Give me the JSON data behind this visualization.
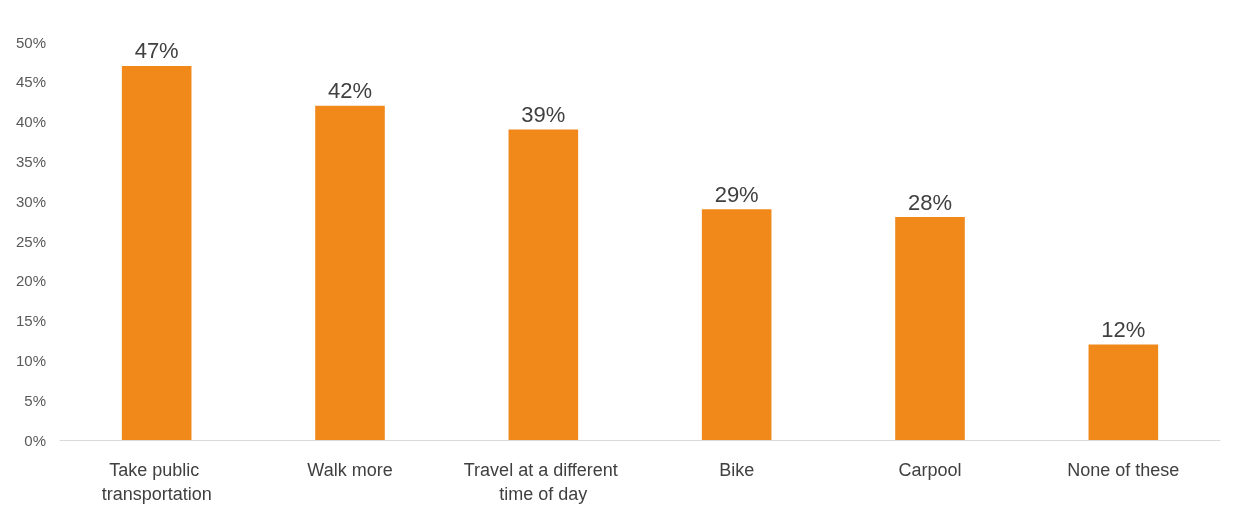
{
  "chart_data": {
    "type": "bar",
    "categories": [
      "Take public transportation",
      "Walk more",
      "Travel at a different time of day",
      "Bike",
      "Carpool",
      "None of these"
    ],
    "values": [
      47,
      42,
      39,
      29,
      28,
      12
    ],
    "value_labels": [
      "47%",
      "42%",
      "39%",
      "29%",
      "28%",
      "12%"
    ],
    "color": "#f0881a",
    "ylim": [
      0,
      50
    ],
    "yticks": [
      {
        "value": 0,
        "label": "0%"
      },
      {
        "value": 5,
        "label": "5%"
      },
      {
        "value": 10,
        "label": "10%"
      },
      {
        "value": 15,
        "label": "15%"
      },
      {
        "value": 20,
        "label": "20%"
      },
      {
        "value": 25,
        "label": "25%"
      },
      {
        "value": 30,
        "label": "30%"
      },
      {
        "value": 35,
        "label": "35%"
      },
      {
        "value": 40,
        "label": "40%"
      },
      {
        "value": 45,
        "label": "45%"
      },
      {
        "value": 50,
        "label": "50%"
      }
    ],
    "grid": false
  }
}
